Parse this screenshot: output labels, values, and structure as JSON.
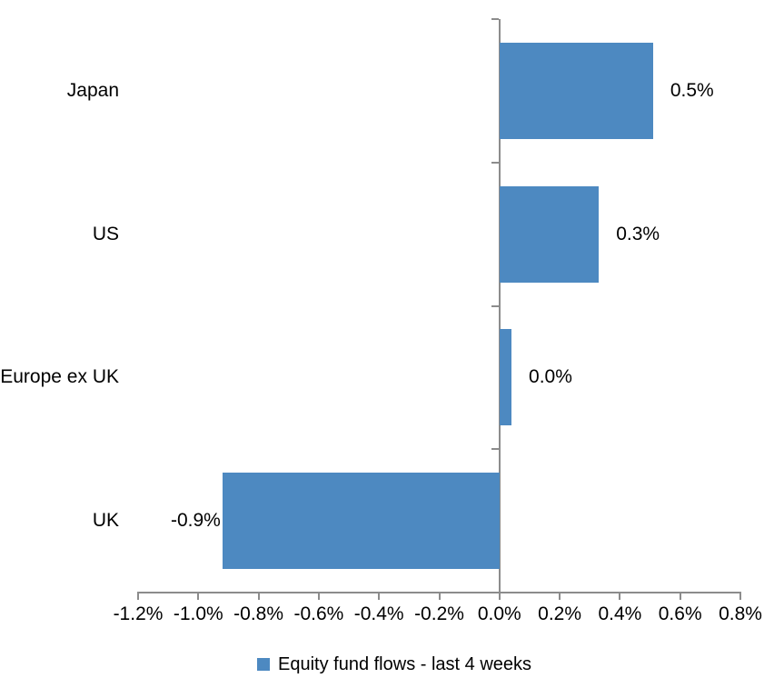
{
  "chart_data": {
    "type": "bar",
    "orientation": "horizontal",
    "title": "",
    "categories": [
      "Japan",
      "US",
      "Europe ex UK",
      "UK"
    ],
    "series": [
      {
        "name": "Equity fund flows - last 4 weeks",
        "values": [
          0.5,
          0.3,
          0.0,
          -0.9
        ],
        "value_labels": [
          "0.5%",
          "0.3%",
          "0.0%",
          "-0.9%"
        ],
        "bar_render_values": [
          0.51,
          0.33,
          0.04,
          -0.92
        ],
        "color": "#4D89C1"
      }
    ],
    "x_axis": {
      "min": -1.2,
      "max": 0.8,
      "tick_step": 0.2,
      "tick_labels": [
        "-1.2%",
        "-1.0%",
        "-0.8%",
        "-0.6%",
        "-0.4%",
        "-0.2%",
        "0.0%",
        "0.2%",
        "0.4%",
        "0.6%",
        "0.8%"
      ],
      "color": "#8C8C8C"
    },
    "grid": false,
    "legend_position": "bottom",
    "data_labels": "outside-end",
    "text_color": "#000000",
    "background": "#FFFFFF"
  }
}
